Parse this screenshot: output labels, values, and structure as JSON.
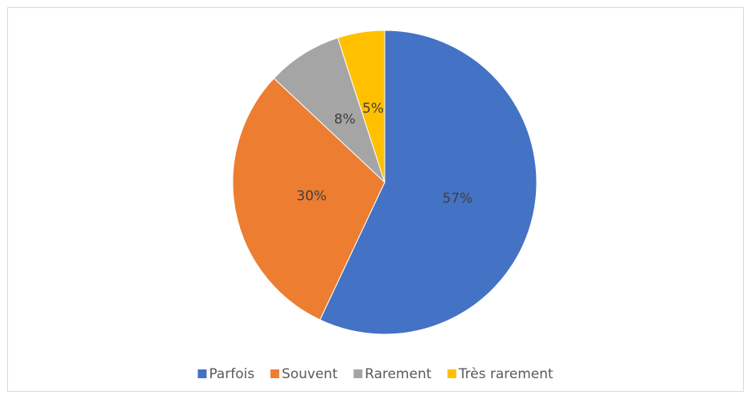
{
  "chart_data": {
    "type": "pie",
    "categories": [
      "Parfois",
      "Souvent",
      "Rarement",
      "Très rarement"
    ],
    "values": [
      57,
      30,
      8,
      5
    ],
    "value_labels": [
      "57%",
      "30%",
      "8%",
      "5%"
    ],
    "colors": [
      "#4472c4",
      "#ed7d31",
      "#a5a5a5",
      "#ffc000"
    ],
    "legend": "bottom"
  }
}
